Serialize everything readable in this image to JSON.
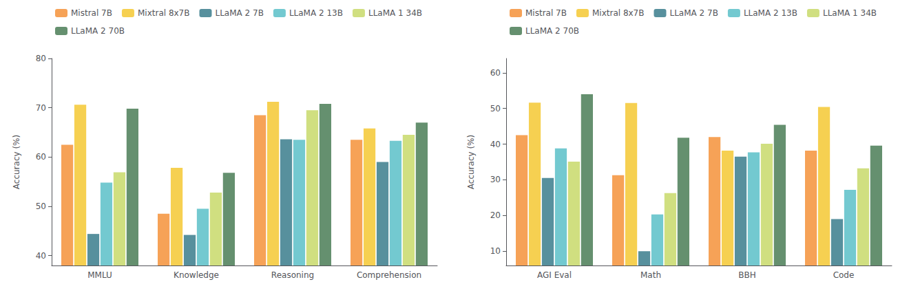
{
  "chart_data": [
    {
      "type": "bar",
      "categories": [
        "MMLU",
        "Knowledge",
        "Reasoning",
        "Comprehension"
      ],
      "series": [
        {
          "name": "Mistral 7B",
          "color": "#F4923A",
          "values": [
            62.5,
            48.5,
            68.5,
            63.5
          ]
        },
        {
          "name": "Mixtral 8x7B",
          "color": "#F5C832",
          "values": [
            70.6,
            57.8,
            71.2,
            65.8
          ]
        },
        {
          "name": "LLaMA 2 7B",
          "color": "#3A7D8C",
          "values": [
            44.4,
            44.2,
            63.6,
            59.0
          ]
        },
        {
          "name": "LLaMA 2 13B",
          "color": "#5BBFC8",
          "values": [
            54.8,
            49.5,
            63.5,
            63.3
          ]
        },
        {
          "name": "LLaMA 1 34B",
          "color": "#C8D96A",
          "values": [
            56.9,
            52.8,
            69.5,
            64.5
          ]
        },
        {
          "name": "LLaMA 2 70B",
          "color": "#4A7C56",
          "values": [
            69.8,
            56.8,
            70.8,
            67.0
          ]
        }
      ],
      "ylabel": "Accuracy (%)",
      "ylim": [
        38,
        80
      ],
      "yticks": [
        40,
        50,
        60,
        70,
        80
      ],
      "grid": false,
      "legend": "upper left"
    },
    {
      "type": "bar",
      "categories": [
        "AGI Eval",
        "Math",
        "BBH",
        "Code"
      ],
      "series": [
        {
          "name": "Mistral 7B",
          "color": "#F4923A",
          "values": [
            42.5,
            31.3,
            42.0,
            38.2
          ]
        },
        {
          "name": "Mixtral 8x7B",
          "color": "#F5C832",
          "values": [
            51.6,
            51.5,
            38.2,
            50.4
          ]
        },
        {
          "name": "LLaMA 2 7B",
          "color": "#3A7D8C",
          "values": [
            30.5,
            10.0,
            36.5,
            19.0
          ]
        },
        {
          "name": "LLaMA 2 13B",
          "color": "#5BBFC8",
          "values": [
            38.8,
            20.3,
            37.7,
            27.2
          ]
        },
        {
          "name": "LLaMA 1 34B",
          "color": "#C8D96A",
          "values": [
            35.1,
            26.3,
            40.1,
            33.2
          ]
        },
        {
          "name": "LLaMA 2 70B",
          "color": "#4A7C56",
          "values": [
            54.0,
            41.8,
            45.4,
            39.6
          ]
        }
      ],
      "ylabel": "Accuracy (%)",
      "ylim": [
        6,
        64
      ],
      "yticks": [
        10,
        20,
        30,
        40,
        50,
        60
      ],
      "grid": false,
      "legend": "upper left"
    }
  ]
}
